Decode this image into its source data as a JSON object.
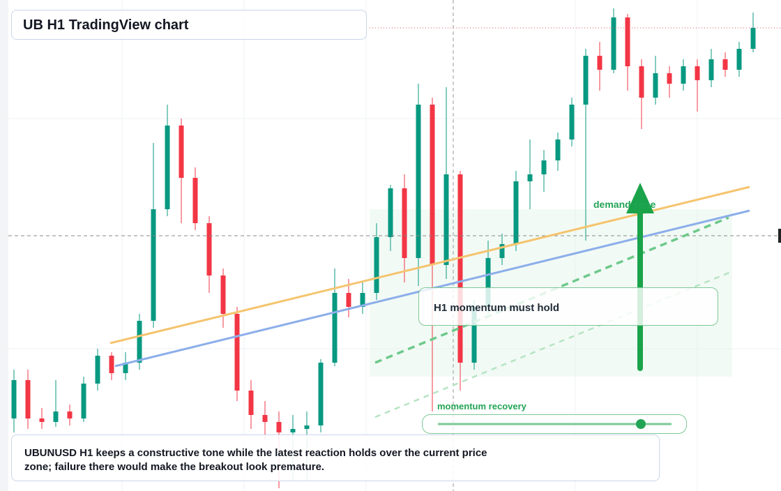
{
  "title": "UB H1 TradingView chart",
  "caption": "UBUNUSD H1 keeps a constructive tone while the latest reaction holds over the current price zone; failure there would make the breakout look premature.",
  "annotations": {
    "hold": "H1 momentum must hold",
    "recovery": "momentum recovery",
    "zone": "demand zone"
  },
  "chart_data": {
    "type": "candlestick",
    "up_color": "#089981",
    "down_color": "#f23645",
    "ylim": [
      0,
      704
    ],
    "open": [
      104,
      159,
      104,
      99,
      114,
      104,
      154,
      194,
      169,
      184,
      244,
      404,
      524,
      449,
      384,
      309,
      254,
      144,
      109,
      99,
      84,
      89,
      94,
      184,
      284,
      264,
      284,
      364,
      434,
      334,
      554,
      324,
      454,
      184,
      264,
      334,
      354,
      444,
      454,
      474,
      504,
      554,
      624,
      604,
      679,
      609,
      564,
      599,
      584,
      609,
      589,
      619,
      604,
      634
    ],
    "high": [
      174,
      174,
      119,
      159,
      124,
      164,
      204,
      199,
      199,
      254,
      499,
      554,
      534,
      464,
      394,
      319,
      264,
      159,
      129,
      114,
      109,
      114,
      189,
      319,
      304,
      299,
      384,
      439,
      454,
      584,
      564,
      579,
      459,
      274,
      359,
      369,
      459,
      504,
      489,
      514,
      564,
      634,
      644,
      692,
      684,
      619,
      624,
      609,
      619,
      619,
      634,
      629,
      644,
      686
    ],
    "low": [
      84,
      89,
      89,
      92,
      94,
      99,
      144,
      159,
      159,
      174,
      234,
      394,
      384,
      374,
      284,
      234,
      129,
      89,
      74,
      4,
      14,
      14,
      84,
      179,
      249,
      254,
      274,
      344,
      299,
      294,
      114,
      304,
      144,
      174,
      254,
      324,
      344,
      404,
      429,
      459,
      494,
      359,
      574,
      599,
      574,
      519,
      554,
      564,
      574,
      544,
      579,
      594,
      594,
      629
    ],
    "close": [
      159,
      104,
      99,
      114,
      104,
      154,
      194,
      169,
      184,
      244,
      404,
      524,
      449,
      384,
      309,
      254,
      144,
      109,
      99,
      84,
      89,
      94,
      184,
      284,
      264,
      284,
      364,
      434,
      334,
      554,
      324,
      454,
      184,
      264,
      334,
      354,
      444,
      454,
      474,
      504,
      554,
      624,
      604,
      679,
      609,
      564,
      599,
      584,
      609,
      589,
      619,
      604,
      634,
      664
    ]
  }
}
